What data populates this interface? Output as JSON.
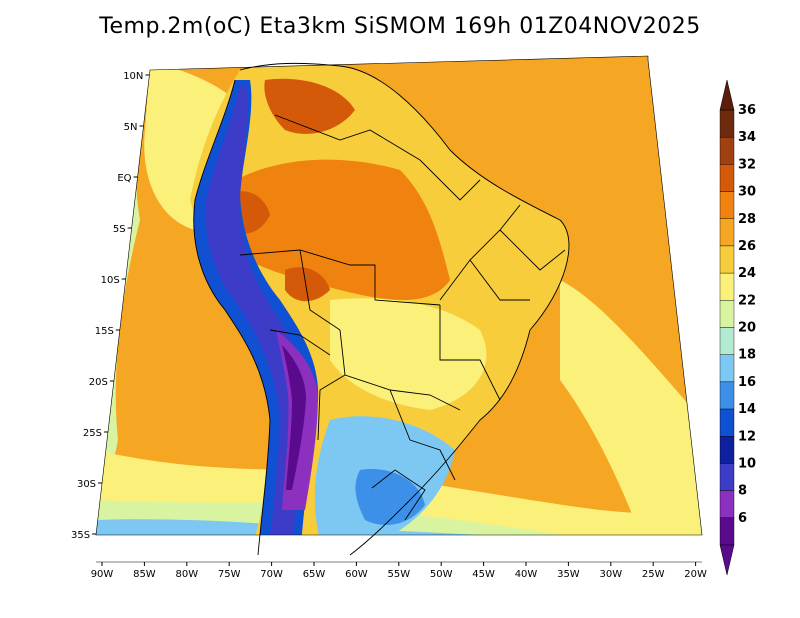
{
  "title": "Temp.2m(oC) Eta3km SiSMOM 169h 01Z04NOV2025",
  "map": {
    "lat_labels": [
      "10N",
      "5N",
      "EQ",
      "5S",
      "10S",
      "15S",
      "20S",
      "25S",
      "30S",
      "35S"
    ],
    "lon_labels": [
      "90W",
      "85W",
      "80W",
      "75W",
      "70W",
      "65W",
      "60W",
      "55W",
      "50W",
      "45W",
      "40W",
      "35W",
      "30W",
      "25W",
      "20W"
    ]
  },
  "colorbar": {
    "labels": [
      "36",
      "34",
      "32",
      "30",
      "28",
      "26",
      "24",
      "22",
      "20",
      "18",
      "16",
      "14",
      "12",
      "10",
      "8",
      "6"
    ],
    "colors": [
      "#6e2a0e",
      "#a0410f",
      "#d45a0a",
      "#f0820f",
      "#f5a623",
      "#f7cd3c",
      "#faf07a",
      "#d8f4a0",
      "#b2ebd2",
      "#7cc8f2",
      "#3c90e8",
      "#1050d2",
      "#0c20a0",
      "#3c3cc8",
      "#8c30c0",
      "#5a0a8c"
    ],
    "bottom_color": "#5a0a8c",
    "top_color": "#5a1e0a"
  },
  "fields": {
    "ocean": "#f5a623",
    "continent": "#f7cd3c",
    "warm": "#f0820f",
    "hot": "#d45a0a",
    "cool": "#faf07a",
    "south": "#7cc8f2",
    "deep_south": "#3c90e8",
    "andes_outer": "#1050d2",
    "andes_mid": "#3c3cc8",
    "andes_core": "#8c30c0",
    "andes_peak": "#5a0a8c",
    "green_band": "#d8f4a0",
    "pale_south": "#faf07a"
  }
}
